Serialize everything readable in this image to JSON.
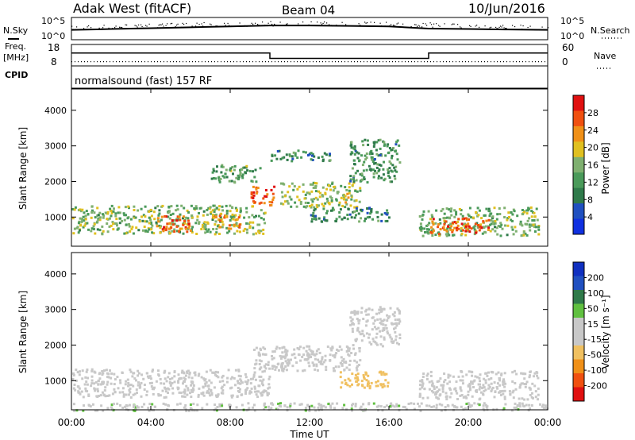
{
  "header": {
    "radar": "Adak West (fitACF)",
    "beam": "Beam 04",
    "date": "10/Jun/2016"
  },
  "noise_panel": {
    "left_label": "N.Sky",
    "right_label": "N.Search",
    "left_ticks": [
      "10^5",
      "10^0"
    ],
    "right_ticks": [
      "10^5",
      "10^0"
    ]
  },
  "freq_panel": {
    "left_label_1": "Freq.",
    "left_label_2": "[MHz]",
    "cpid_label": "CPID",
    "right_label": "Nave",
    "left_ticks": [
      "18",
      "8"
    ],
    "right_ticks": [
      "60",
      "0"
    ]
  },
  "cpid_text": "normalsound (fast) 157 RF",
  "power_panel": {
    "ylabel": "Slant Range [km]",
    "yticks": [
      "4000",
      "3000",
      "2000",
      "1000"
    ],
    "colorbar_label": "Power [dB]",
    "colorbar_ticks": [
      "28",
      "24",
      "20",
      "16",
      "12",
      "8",
      "4"
    ]
  },
  "velocity_panel": {
    "ylabel": "Slant Range [km]",
    "yticks": [
      "4000",
      "3000",
      "2000",
      "1000"
    ],
    "colorbar_label": "Velocity [m s⁻¹]",
    "colorbar_ticks": [
      "200",
      "100",
      "50",
      "15",
      "-15",
      "-50",
      "-100",
      "-200"
    ]
  },
  "xaxis": {
    "label": "Time UT",
    "ticks": [
      "00:00",
      "04:00",
      "08:00",
      "12:00",
      "16:00",
      "20:00",
      "00:00"
    ]
  },
  "colors": {
    "power_scale": [
      "#1030e0",
      "#2050c0",
      "#2f7a4a",
      "#4a9a5a",
      "#7fb070",
      "#e0c020",
      "#f09018",
      "#f05010",
      "#e01010"
    ],
    "velocity_scale": [
      "#e01010",
      "#f05010",
      "#f09018",
      "#f0c060",
      "#c8c8c8",
      "#c8c8c8",
      "#60c040",
      "#2f7a4a",
      "#2050c0",
      "#1030c0"
    ]
  },
  "chart_data": [
    {
      "type": "line",
      "title": "N.Sky / N.Search",
      "x": [
        0,
        2,
        4,
        6,
        8,
        10,
        12,
        14,
        16,
        18,
        20,
        22,
        24
      ],
      "xunit": "hours UT",
      "ylabel": "",
      "ylim": [
        0,
        5
      ],
      "series": [
        {
          "name": "N.Sky",
          "values": [
            2.2,
            2.4,
            2.6,
            2.8,
            3.0,
            3.2,
            3.2,
            3.1,
            3.0,
            2.5,
            2.4,
            2.3,
            2.2
          ]
        }
      ]
    },
    {
      "type": "line",
      "title": "Freq. [MHz] / Nave",
      "x": [
        0,
        10,
        10,
        18,
        18,
        24
      ],
      "xunit": "hours UT",
      "ylim": [
        8,
        18
      ],
      "series": [
        {
          "name": "Freq.",
          "values": [
            14,
            14,
            11.5,
            11.5,
            14,
            14
          ]
        },
        {
          "name": "Nave",
          "values": [
            10,
            10,
            10,
            10,
            10,
            10
          ]
        }
      ]
    },
    {
      "type": "heatmap",
      "title": "Power [dB]",
      "xlabel": "Time UT",
      "ylabel": "Slant Range [km]",
      "xlim": [
        0,
        24
      ],
      "ylim": [
        180,
        4600
      ],
      "colorbar": {
        "label": "Power [dB]",
        "range": [
          0,
          30
        ]
      },
      "regions": [
        {
          "t0": 0.0,
          "t1": 9.8,
          "r0": 550,
          "r1": 1350,
          "value": 14
        },
        {
          "t0": 4.2,
          "t1": 6.0,
          "r0": 600,
          "r1": 1050,
          "value": 25
        },
        {
          "t0": 7.0,
          "t1": 8.5,
          "r0": 700,
          "r1": 1100,
          "value": 22
        },
        {
          "t0": 9.0,
          "t1": 10.2,
          "r0": 1350,
          "r1": 1900,
          "value": 26
        },
        {
          "t0": 7.0,
          "t1": 9.5,
          "r0": 2000,
          "r1": 2500,
          "value": 12
        },
        {
          "t0": 10.5,
          "t1": 14.5,
          "r0": 1300,
          "r1": 2000,
          "value": 16
        },
        {
          "t0": 12.0,
          "t1": 16.0,
          "r0": 900,
          "r1": 1300,
          "value": 9
        },
        {
          "t0": 14.0,
          "t1": 16.5,
          "r0": 2000,
          "r1": 3200,
          "value": 10
        },
        {
          "t0": 10.0,
          "t1": 13.0,
          "r0": 2600,
          "r1": 2900,
          "value": 9
        },
        {
          "t0": 17.5,
          "t1": 23.5,
          "r0": 500,
          "r1": 1300,
          "value": 14
        },
        {
          "t0": 18.0,
          "t1": 21.0,
          "r0": 550,
          "r1": 1000,
          "value": 25
        }
      ]
    },
    {
      "type": "heatmap",
      "title": "Velocity [m s⁻¹]",
      "xlabel": "Time UT",
      "ylabel": "Slant Range [km]",
      "xlim": [
        0,
        24
      ],
      "ylim": [
        180,
        4600
      ],
      "colorbar": {
        "label": "Velocity [m s⁻¹]",
        "range": [
          -250,
          250
        ]
      },
      "regions": [
        {
          "t0": 0.0,
          "t1": 10.0,
          "r0": 550,
          "r1": 1350,
          "value": 0
        },
        {
          "t0": 9.0,
          "t1": 11.0,
          "r0": 1300,
          "r1": 2000,
          "value": 0
        },
        {
          "t0": 10.5,
          "t1": 14.5,
          "r0": 1300,
          "r1": 2000,
          "value": 0
        },
        {
          "t0": 13.5,
          "t1": 16.0,
          "r0": 800,
          "r1": 1300,
          "value": -70
        },
        {
          "t0": 14.0,
          "t1": 16.5,
          "r0": 2000,
          "r1": 3100,
          "value": 0
        },
        {
          "t0": 17.5,
          "t1": 23.5,
          "r0": 500,
          "r1": 1300,
          "value": 0
        },
        {
          "t0": 0.0,
          "t1": 24.0,
          "r0": 180,
          "r1": 400,
          "value": 40
        }
      ]
    }
  ]
}
